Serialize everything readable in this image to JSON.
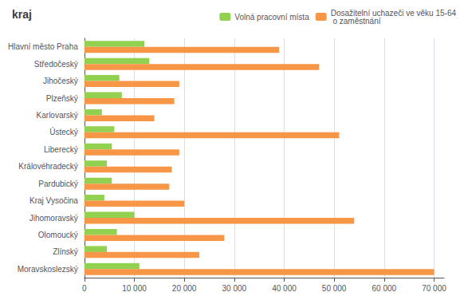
{
  "chart_data": {
    "type": "bar",
    "orientation": "horizontal",
    "title": "kraj",
    "categories": [
      "Hlavní město Praha",
      "Středočeský",
      "Jihočeský",
      "Plzeňský",
      "Karlovarský",
      "Ústecký",
      "Liberecký",
      "Královéhradecký",
      "Pardubický",
      "Kraj Vysočina",
      "Jihomoravský",
      "Olomoucký",
      "Zlínský",
      "Moravskoslezský"
    ],
    "series": [
      {
        "name": "Volná pracovní místa",
        "color": "#92d050",
        "values": [
          12000,
          13000,
          7000,
          7500,
          3500,
          6000,
          5500,
          4500,
          5500,
          4000,
          10000,
          6500,
          4500,
          11000
        ]
      },
      {
        "name": "Dosažitelní uchazeči ve věku 15-64\n o zaměstnání",
        "color": "#f79646",
        "values": [
          39000,
          47000,
          19000,
          18000,
          14000,
          51000,
          19000,
          17500,
          17000,
          20000,
          54000,
          28000,
          23000,
          70000
        ]
      }
    ],
    "xlim": [
      0,
      72000
    ],
    "xticks": [
      0,
      {
        "value": 10000,
        "label": "10 000"
      },
      {
        "value": 20000,
        "label": "20 000"
      },
      {
        "value": 30000,
        "label": "30 000"
      },
      {
        "value": 40000,
        "label": "40 000"
      },
      {
        "value": 50000,
        "label": "50 000"
      },
      {
        "value": 60000,
        "label": "60 000"
      },
      {
        "value": 70000,
        "label": "70 000"
      }
    ],
    "grid": true,
    "legend": "upper right"
  }
}
